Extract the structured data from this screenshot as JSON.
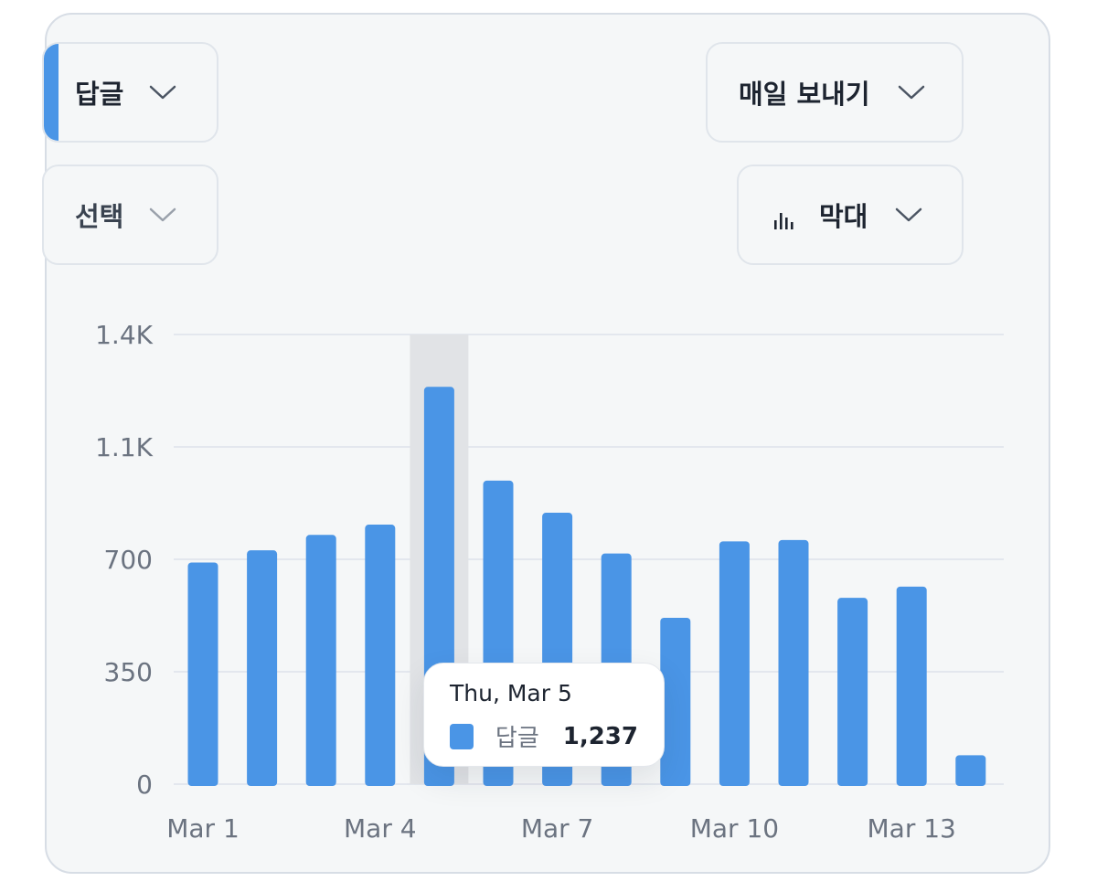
{
  "controls": {
    "metric": {
      "label": "답글"
    },
    "filter": {
      "label": "선택"
    },
    "frequency": {
      "label": "매일 보내기"
    },
    "chart_type": {
      "label": "막대",
      "icon": "bar-chart-icon"
    }
  },
  "colors": {
    "bar": "#4a95e6",
    "highlight": "#e1e3e6",
    "grid": "#e3e7ee",
    "accent": "#4a95e6"
  },
  "tooltip": {
    "date": "Thu, Mar 5",
    "series": "답글",
    "value": "1,237"
  },
  "chart_data": {
    "type": "bar",
    "categories": [
      "Mar 1",
      "Mar 2",
      "Mar 3",
      "Mar 4",
      "Mar 5",
      "Mar 6",
      "Mar 7",
      "Mar 8",
      "Mar 9",
      "Mar 10",
      "Mar 11",
      "Mar 12",
      "Mar 13",
      "Mar 14"
    ],
    "x_tick_labels": [
      "Mar 1",
      "Mar 4",
      "Mar 7",
      "Mar 10",
      "Mar 13"
    ],
    "series": [
      {
        "name": "답글",
        "values": [
          690,
          728,
          776,
          808,
          1237,
          945,
          845,
          718,
          518,
          756,
          760,
          580,
          615,
          90
        ]
      }
    ],
    "y_ticks": [
      0,
      350,
      700,
      1050,
      1400
    ],
    "y_tick_labels": [
      "0",
      "350",
      "700",
      "1.1K",
      "1.4K"
    ],
    "ylim": [
      0,
      1400
    ],
    "highlighted_category": "Mar 5",
    "grid": true,
    "xlabel": "",
    "ylabel": "",
    "title": ""
  }
}
